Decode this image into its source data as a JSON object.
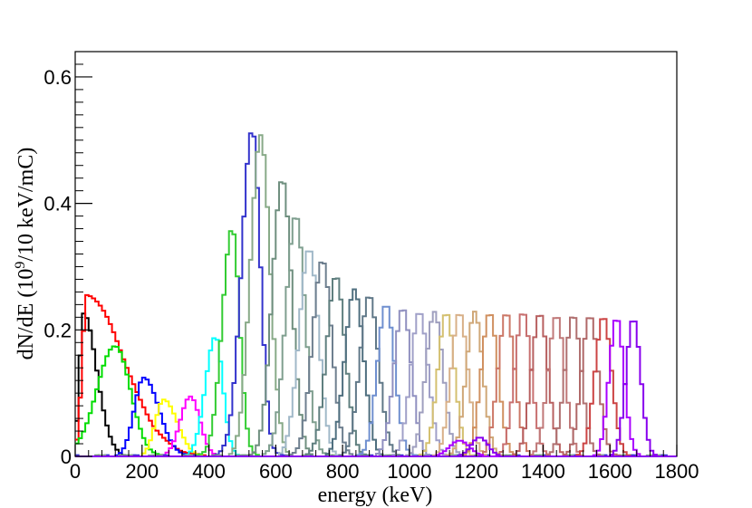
{
  "chart_data": {
    "type": "line",
    "title": "",
    "xlabel": "energy (keV)",
    "ylabel_parts": {
      "pre": "dN/dE (10",
      "sup": "9",
      "post": "/10 keV/mC)"
    },
    "xlim": [
      0,
      1800
    ],
    "ylim": [
      0,
      0.64
    ],
    "xticks": [
      0,
      200,
      400,
      600,
      800,
      1000,
      1200,
      1400,
      1600,
      1800
    ],
    "yticks": [
      0,
      0.2,
      0.4,
      0.6
    ],
    "ytick_labels": [
      "0",
      "0.2",
      "0.4",
      "0.6"
    ],
    "grid": false,
    "legend": "none",
    "bin_width_keV": 10,
    "series_note": "histogram step curves; each series: center (keV), peak height, left sigma, right sigma (keV), color",
    "series": [
      {
        "center": 25,
        "peak": 0.225,
        "sl": 12,
        "sr": 40,
        "color": "#000000"
      },
      {
        "center": 35,
        "peak": 0.255,
        "sl": 14,
        "sr": 110,
        "color": "#ff0000"
      },
      {
        "center": 120,
        "peak": 0.175,
        "sl": 55,
        "sr": 45,
        "color": "#00dd00"
      },
      {
        "center": 205,
        "peak": 0.125,
        "sl": 28,
        "sr": 45,
        "color": "#0000ff"
      },
      {
        "center": 265,
        "peak": 0.09,
        "sl": 25,
        "sr": 40,
        "color": "#ffff00"
      },
      {
        "center": 345,
        "peak": 0.095,
        "sl": 30,
        "sr": 28,
        "color": "#ff00ff"
      },
      {
        "center": 420,
        "peak": 0.19,
        "sl": 30,
        "sr": 22,
        "color": "#00ffff"
      },
      {
        "center": 470,
        "peak": 0.36,
        "sl": 30,
        "sr": 22,
        "color": "#33cc33"
      },
      {
        "center": 530,
        "peak": 0.515,
        "sl": 32,
        "sr": 24,
        "color": "#3333cc"
      },
      {
        "center": 555,
        "peak": 0.51,
        "sl": 30,
        "sr": 28,
        "color": "#88aa88"
      },
      {
        "center": 620,
        "peak": 0.44,
        "sl": 30,
        "sr": 28,
        "color": "#6f8f7f"
      },
      {
        "center": 660,
        "peak": 0.38,
        "sl": 30,
        "sr": 28,
        "color": "#7f9f8f"
      },
      {
        "center": 700,
        "peak": 0.33,
        "sl": 30,
        "sr": 28,
        "color": "#a0b8c8"
      },
      {
        "center": 740,
        "peak": 0.31,
        "sl": 30,
        "sr": 28,
        "color": "#6e7f8f"
      },
      {
        "center": 780,
        "peak": 0.285,
        "sl": 28,
        "sr": 28,
        "color": "#5f7f7f"
      },
      {
        "center": 835,
        "peak": 0.265,
        "sl": 28,
        "sr": 28,
        "color": "#4f6f7f"
      },
      {
        "center": 880,
        "peak": 0.255,
        "sl": 28,
        "sr": 28,
        "color": "#607888"
      },
      {
        "center": 930,
        "peak": 0.24,
        "sl": 26,
        "sr": 26,
        "color": "#6f8fcf"
      },
      {
        "center": 980,
        "peak": 0.235,
        "sl": 26,
        "sr": 26,
        "color": "#9090c0"
      },
      {
        "center": 1030,
        "peak": 0.23,
        "sl": 26,
        "sr": 26,
        "color": "#a0a0c8"
      },
      {
        "center": 1075,
        "peak": 0.228,
        "sl": 26,
        "sr": 26,
        "color": "#9f9fbf"
      },
      {
        "center": 1110,
        "peak": 0.228,
        "sl": 25,
        "sr": 25,
        "color": "#d4c070"
      },
      {
        "center": 1150,
        "peak": 0.228,
        "sl": 25,
        "sr": 25,
        "color": "#d8b088"
      },
      {
        "center": 1195,
        "peak": 0.228,
        "sl": 25,
        "sr": 25,
        "color": "#d0a878"
      },
      {
        "center": 1240,
        "peak": 0.228,
        "sl": 25,
        "sr": 25,
        "color": "#d09060"
      },
      {
        "center": 1290,
        "peak": 0.228,
        "sl": 25,
        "sr": 25,
        "color": "#cc7766"
      },
      {
        "center": 1340,
        "peak": 0.228,
        "sl": 25,
        "sr": 25,
        "color": "#c87070"
      },
      {
        "center": 1390,
        "peak": 0.226,
        "sl": 25,
        "sr": 25,
        "color": "#b86060"
      },
      {
        "center": 1440,
        "peak": 0.224,
        "sl": 25,
        "sr": 25,
        "color": "#c07878"
      },
      {
        "center": 1490,
        "peak": 0.224,
        "sl": 25,
        "sr": 25,
        "color": "#b07070"
      },
      {
        "center": 1540,
        "peak": 0.222,
        "sl": 25,
        "sr": 25,
        "color": "#b06868"
      },
      {
        "center": 1580,
        "peak": 0.222,
        "sl": 25,
        "sr": 25,
        "color": "#cc4444"
      },
      {
        "center": 1620,
        "peak": 0.22,
        "sl": 22,
        "sr": 22,
        "color": "#aa00ff"
      },
      {
        "center": 1670,
        "peak": 0.218,
        "sl": 22,
        "sr": 22,
        "color": "#8800ee"
      },
      {
        "center": 1150,
        "peak": 0.025,
        "sl": 30,
        "sr": 30,
        "color": "#aa00ff"
      },
      {
        "center": 1210,
        "peak": 0.03,
        "sl": 25,
        "sr": 25,
        "color": "#8800ee"
      }
    ]
  }
}
